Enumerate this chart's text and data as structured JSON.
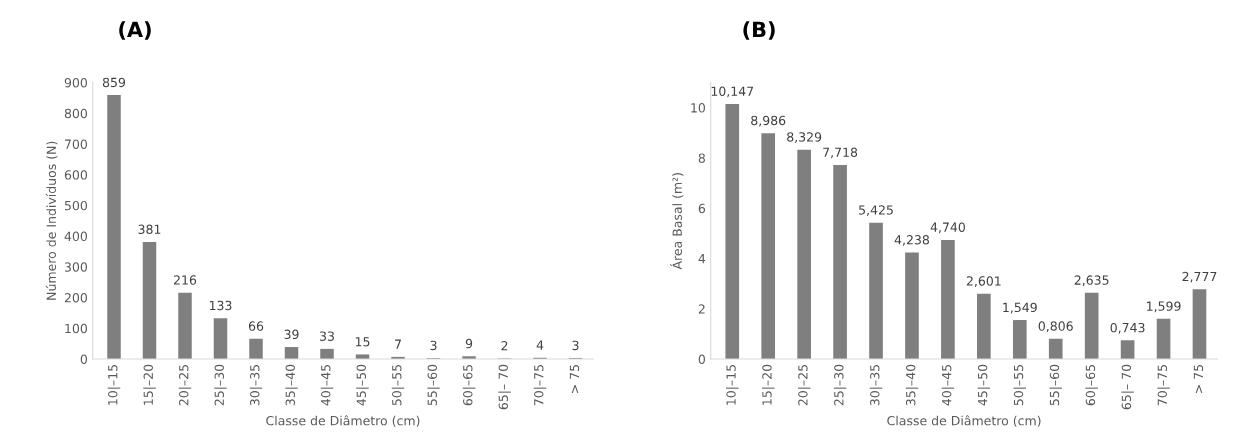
{
  "chart_data": [
    {
      "type": "bar",
      "title": "(A)",
      "xlabel": "Classe de Diâmetro (cm)",
      "ylabel": "Número de Indivíduos (N)",
      "categories": [
        "10|–15",
        "15|–20",
        "20|–25",
        "25|–30",
        "30|–35",
        "35|–40",
        "40|–45",
        "45|–50",
        "50|–55",
        "55|–60",
        "60|–65",
        "65|– 70",
        "70|–75",
        "> 75"
      ],
      "values": [
        859,
        381,
        216,
        133,
        66,
        39,
        33,
        15,
        7,
        3,
        9,
        2,
        4,
        3
      ],
      "color": "#7f7f7f",
      "ylim": [
        0,
        900
      ],
      "yticks": [
        0,
        100,
        200,
        300,
        400,
        500,
        600,
        700,
        800,
        900
      ],
      "data_labels": true,
      "grid": false,
      "legend": false
    },
    {
      "type": "bar",
      "title": "(B)",
      "xlabel": "Classe de Diâmetro (cm)",
      "ylabel": "Área Basal (m²)",
      "categories": [
        "10|–15",
        "15|–20",
        "20|–25",
        "25|–30",
        "30|–35",
        "35|–40",
        "40|–45",
        "45|–50",
        "50|–55",
        "55|–60",
        "60|–65",
        "65|– 70",
        "70|–75",
        "> 75"
      ],
      "values": [
        10.147,
        8.986,
        8.329,
        7.718,
        5.425,
        4.238,
        4.74,
        2.601,
        1.549,
        0.806,
        2.635,
        0.743,
        1.599,
        2.777
      ],
      "value_labels": [
        "10,147",
        "8,986",
        "8,329",
        "7,718",
        "5,425",
        "4,238",
        "4,740",
        "2,601",
        "1,549",
        "0,806",
        "2,635",
        "0,743",
        "1,599",
        "2,777"
      ],
      "color": "#7f7f7f",
      "ylim": [
        0,
        11
      ],
      "yticks": [
        0,
        2,
        4,
        6,
        8,
        10
      ],
      "grid": false,
      "legend": false
    }
  ]
}
